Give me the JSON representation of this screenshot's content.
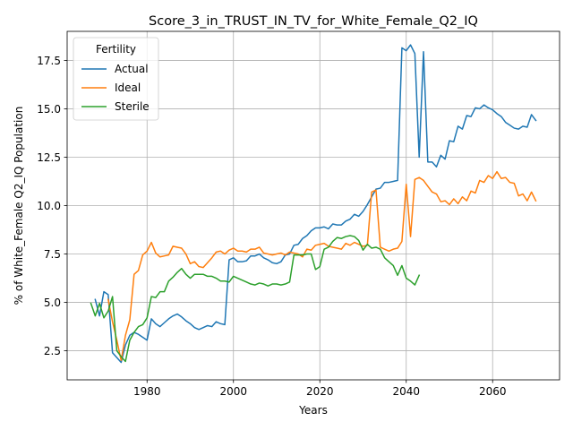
{
  "chart_data": {
    "type": "line",
    "title": "Score_3_in_TRUST_IN_TV_for_White_Female_Q2_IQ",
    "xlabel": "Years",
    "ylabel": "% of White_Female Q2_IQ Population",
    "xlim": [
      1961.5,
      2075.5
    ],
    "ylim": [
      1.0,
      19.0
    ],
    "xticks": [
      1980,
      2000,
      2020,
      2040,
      2060
    ],
    "yticks": [
      2.5,
      5.0,
      7.5,
      10.0,
      12.5,
      15.0,
      17.5
    ],
    "ytick_labels": [
      "2.5",
      "5.0",
      "7.5",
      "10.0",
      "12.5",
      "15.0",
      "17.5"
    ],
    "grid": true,
    "legend": {
      "title": "Fertility",
      "placement": "top-left"
    },
    "series": [
      {
        "name": "Actual",
        "color": "#1f77b4",
        "points": [
          [
            1968,
            5.15
          ],
          [
            1969,
            4.3
          ],
          [
            1970,
            5.55
          ],
          [
            1971,
            5.4
          ],
          [
            1972,
            2.4
          ],
          [
            1973,
            2.15
          ],
          [
            1974,
            1.9
          ],
          [
            1975,
            2.8
          ],
          [
            1976,
            3.3
          ],
          [
            1977,
            3.45
          ],
          [
            1978,
            3.35
          ],
          [
            1979,
            3.2
          ],
          [
            1980,
            3.05
          ],
          [
            1981,
            4.15
          ],
          [
            1982,
            3.9
          ],
          [
            1983,
            3.75
          ],
          [
            1984,
            3.95
          ],
          [
            1985,
            4.15
          ],
          [
            1986,
            4.3
          ],
          [
            1987,
            4.4
          ],
          [
            1988,
            4.25
          ],
          [
            1989,
            4.05
          ],
          [
            1990,
            3.9
          ],
          [
            1991,
            3.7
          ],
          [
            1992,
            3.6
          ],
          [
            1993,
            3.7
          ],
          [
            1994,
            3.8
          ],
          [
            1995,
            3.75
          ],
          [
            1996,
            4.0
          ],
          [
            1997,
            3.9
          ],
          [
            1998,
            3.85
          ],
          [
            1999,
            7.2
          ],
          [
            2000,
            7.3
          ],
          [
            2001,
            7.1
          ],
          [
            2002,
            7.1
          ],
          [
            2003,
            7.15
          ],
          [
            2004,
            7.4
          ],
          [
            2005,
            7.4
          ],
          [
            2006,
            7.5
          ],
          [
            2007,
            7.3
          ],
          [
            2008,
            7.2
          ],
          [
            2009,
            7.05
          ],
          [
            2010,
            7.0
          ],
          [
            2011,
            7.1
          ],
          [
            2012,
            7.45
          ],
          [
            2013,
            7.5
          ],
          [
            2014,
            7.95
          ],
          [
            2015,
            8.0
          ],
          [
            2016,
            8.3
          ],
          [
            2017,
            8.45
          ],
          [
            2018,
            8.7
          ],
          [
            2019,
            8.85
          ],
          [
            2020,
            8.85
          ],
          [
            2021,
            8.9
          ],
          [
            2022,
            8.8
          ],
          [
            2023,
            9.05
          ],
          [
            2024,
            9.0
          ],
          [
            2025,
            9.0
          ],
          [
            2026,
            9.2
          ],
          [
            2027,
            9.3
          ],
          [
            2028,
            9.55
          ],
          [
            2029,
            9.45
          ],
          [
            2030,
            9.7
          ],
          [
            2031,
            10.05
          ],
          [
            2032,
            10.45
          ],
          [
            2033,
            10.85
          ],
          [
            2034,
            10.9
          ],
          [
            2035,
            11.2
          ],
          [
            2036,
            11.2
          ],
          [
            2037,
            11.25
          ],
          [
            2038,
            11.3
          ],
          [
            2039,
            18.15
          ],
          [
            2040,
            18.0
          ],
          [
            2041,
            18.3
          ],
          [
            2042,
            17.85
          ],
          [
            2043,
            12.5
          ],
          [
            2044,
            17.95
          ],
          [
            2045,
            12.25
          ],
          [
            2046,
            12.25
          ],
          [
            2047,
            12.0
          ],
          [
            2048,
            12.6
          ],
          [
            2049,
            12.4
          ],
          [
            2050,
            13.35
          ],
          [
            2051,
            13.3
          ],
          [
            2052,
            14.1
          ],
          [
            2053,
            13.95
          ],
          [
            2054,
            14.65
          ],
          [
            2055,
            14.6
          ],
          [
            2056,
            15.05
          ],
          [
            2057,
            15.0
          ],
          [
            2058,
            15.2
          ],
          [
            2059,
            15.05
          ],
          [
            2060,
            14.95
          ],
          [
            2061,
            14.75
          ],
          [
            2062,
            14.6
          ],
          [
            2063,
            14.3
          ],
          [
            2064,
            14.15
          ],
          [
            2065,
            14.0
          ],
          [
            2066,
            13.95
          ],
          [
            2067,
            14.1
          ],
          [
            2068,
            14.05
          ],
          [
            2069,
            14.7
          ],
          [
            2070,
            14.4
          ]
        ]
      },
      {
        "name": "Ideal",
        "color": "#ff7f0e",
        "points": [
          [
            1971,
            5.15
          ],
          [
            1972,
            4.0
          ],
          [
            1973,
            3.05
          ],
          [
            1974,
            2.0
          ],
          [
            1975,
            3.3
          ],
          [
            1976,
            4.1
          ],
          [
            1977,
            6.45
          ],
          [
            1978,
            6.65
          ],
          [
            1979,
            7.45
          ],
          [
            1980,
            7.65
          ],
          [
            1981,
            8.1
          ],
          [
            1982,
            7.55
          ],
          [
            1983,
            7.35
          ],
          [
            1984,
            7.4
          ],
          [
            1985,
            7.45
          ],
          [
            1986,
            7.9
          ],
          [
            1987,
            7.85
          ],
          [
            1988,
            7.8
          ],
          [
            1989,
            7.5
          ],
          [
            1990,
            7.0
          ],
          [
            1991,
            7.1
          ],
          [
            1992,
            6.85
          ],
          [
            1993,
            6.8
          ],
          [
            1994,
            7.05
          ],
          [
            1995,
            7.3
          ],
          [
            1996,
            7.6
          ],
          [
            1997,
            7.65
          ],
          [
            1998,
            7.5
          ],
          [
            1999,
            7.7
          ],
          [
            2000,
            7.8
          ],
          [
            2001,
            7.65
          ],
          [
            2002,
            7.65
          ],
          [
            2003,
            7.6
          ],
          [
            2004,
            7.75
          ],
          [
            2005,
            7.75
          ],
          [
            2006,
            7.85
          ],
          [
            2007,
            7.55
          ],
          [
            2008,
            7.5
          ],
          [
            2009,
            7.45
          ],
          [
            2010,
            7.5
          ],
          [
            2011,
            7.55
          ],
          [
            2012,
            7.45
          ],
          [
            2013,
            7.6
          ],
          [
            2014,
            7.55
          ],
          [
            2015,
            7.5
          ],
          [
            2016,
            7.35
          ],
          [
            2017,
            7.75
          ],
          [
            2018,
            7.7
          ],
          [
            2019,
            7.95
          ],
          [
            2020,
            8.0
          ],
          [
            2021,
            8.05
          ],
          [
            2022,
            7.9
          ],
          [
            2023,
            7.85
          ],
          [
            2024,
            7.8
          ],
          [
            2025,
            7.75
          ],
          [
            2026,
            8.05
          ],
          [
            2027,
            7.95
          ],
          [
            2028,
            8.1
          ],
          [
            2029,
            8.0
          ],
          [
            2030,
            7.9
          ],
          [
            2031,
            7.95
          ],
          [
            2032,
            10.7
          ],
          [
            2033,
            10.8
          ],
          [
            2034,
            7.85
          ],
          [
            2035,
            7.75
          ],
          [
            2036,
            7.65
          ],
          [
            2037,
            7.75
          ],
          [
            2038,
            7.8
          ],
          [
            2039,
            8.15
          ],
          [
            2040,
            11.1
          ],
          [
            2041,
            8.4
          ],
          [
            2042,
            11.35
          ],
          [
            2043,
            11.45
          ],
          [
            2044,
            11.3
          ],
          [
            2045,
            11.0
          ],
          [
            2046,
            10.7
          ],
          [
            2047,
            10.6
          ],
          [
            2048,
            10.2
          ],
          [
            2049,
            10.25
          ],
          [
            2050,
            10.05
          ],
          [
            2051,
            10.35
          ],
          [
            2052,
            10.1
          ],
          [
            2053,
            10.45
          ],
          [
            2054,
            10.25
          ],
          [
            2055,
            10.75
          ],
          [
            2056,
            10.65
          ],
          [
            2057,
            11.3
          ],
          [
            2058,
            11.2
          ],
          [
            2059,
            11.55
          ],
          [
            2060,
            11.4
          ],
          [
            2061,
            11.75
          ],
          [
            2062,
            11.4
          ],
          [
            2063,
            11.45
          ],
          [
            2064,
            11.2
          ],
          [
            2065,
            11.15
          ],
          [
            2066,
            10.5
          ],
          [
            2067,
            10.6
          ],
          [
            2068,
            10.25
          ],
          [
            2069,
            10.7
          ],
          [
            2070,
            10.25
          ]
        ]
      },
      {
        "name": "Sterile",
        "color": "#2ca02c",
        "points": [
          [
            1967,
            4.95
          ],
          [
            1968,
            4.3
          ],
          [
            1969,
            4.95
          ],
          [
            1970,
            4.2
          ],
          [
            1971,
            4.55
          ],
          [
            1972,
            5.3
          ],
          [
            1973,
            2.5
          ],
          [
            1974,
            2.2
          ],
          [
            1975,
            1.95
          ],
          [
            1976,
            3.05
          ],
          [
            1977,
            3.45
          ],
          [
            1978,
            3.75
          ],
          [
            1979,
            3.85
          ],
          [
            1980,
            4.2
          ],
          [
            1981,
            5.3
          ],
          [
            1982,
            5.25
          ],
          [
            1983,
            5.55
          ],
          [
            1984,
            5.55
          ],
          [
            1985,
            6.1
          ],
          [
            1986,
            6.3
          ],
          [
            1987,
            6.55
          ],
          [
            1988,
            6.75
          ],
          [
            1989,
            6.45
          ],
          [
            1990,
            6.25
          ],
          [
            1991,
            6.45
          ],
          [
            1992,
            6.45
          ],
          [
            1993,
            6.45
          ],
          [
            1994,
            6.35
          ],
          [
            1995,
            6.35
          ],
          [
            1996,
            6.25
          ],
          [
            1997,
            6.1
          ],
          [
            1998,
            6.1
          ],
          [
            1999,
            6.05
          ],
          [
            2000,
            6.35
          ],
          [
            2001,
            6.25
          ],
          [
            2002,
            6.15
          ],
          [
            2003,
            6.05
          ],
          [
            2004,
            5.95
          ],
          [
            2005,
            5.9
          ],
          [
            2006,
            6.0
          ],
          [
            2007,
            5.95
          ],
          [
            2008,
            5.85
          ],
          [
            2009,
            5.95
          ],
          [
            2010,
            5.95
          ],
          [
            2011,
            5.9
          ],
          [
            2012,
            5.95
          ],
          [
            2013,
            6.05
          ],
          [
            2014,
            7.45
          ],
          [
            2015,
            7.45
          ],
          [
            2016,
            7.45
          ],
          [
            2017,
            7.5
          ],
          [
            2018,
            7.5
          ],
          [
            2019,
            6.7
          ],
          [
            2020,
            6.85
          ],
          [
            2021,
            7.75
          ],
          [
            2022,
            7.85
          ],
          [
            2023,
            8.15
          ],
          [
            2024,
            8.35
          ],
          [
            2025,
            8.3
          ],
          [
            2026,
            8.4
          ],
          [
            2027,
            8.45
          ],
          [
            2028,
            8.4
          ],
          [
            2029,
            8.2
          ],
          [
            2030,
            7.7
          ],
          [
            2031,
            8.0
          ],
          [
            2032,
            7.8
          ],
          [
            2033,
            7.85
          ],
          [
            2034,
            7.75
          ],
          [
            2035,
            7.3
          ],
          [
            2036,
            7.1
          ],
          [
            2037,
            6.9
          ],
          [
            2038,
            6.4
          ],
          [
            2039,
            6.9
          ],
          [
            2040,
            6.25
          ],
          [
            2041,
            6.1
          ],
          [
            2042,
            5.9
          ],
          [
            2043,
            6.4
          ]
        ]
      }
    ]
  }
}
